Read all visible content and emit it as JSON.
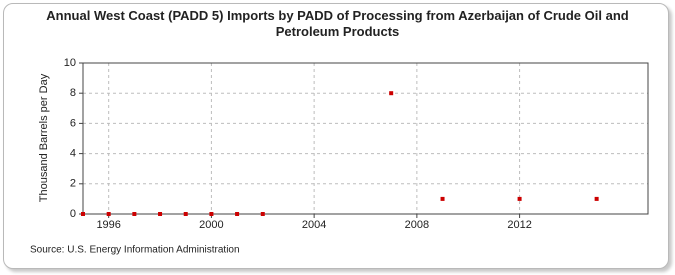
{
  "chart_data": {
    "type": "scatter",
    "title": "Annual West Coast (PADD 5) Imports by PADD of Processing from Azerbaijan of Crude Oil and Petroleum Products",
    "y_label": "Thousand Barrels per Day",
    "source": "Source: U.S. Energy Information Administration",
    "x": [
      1995,
      1996,
      1997,
      1998,
      1999,
      2000,
      2001,
      2002,
      2007,
      2009,
      2012,
      2015
    ],
    "values": [
      0,
      0,
      0,
      0,
      0,
      0,
      0,
      0,
      8,
      1,
      1,
      1
    ],
    "color": "#cc0000",
    "xlim": [
      1995,
      2017
    ],
    "xticks": [
      1996,
      2000,
      2004,
      2008,
      2012
    ],
    "ylim": [
      0,
      10
    ],
    "yticks": [
      0,
      2,
      4,
      6,
      8,
      10
    ],
    "grid": true
  }
}
